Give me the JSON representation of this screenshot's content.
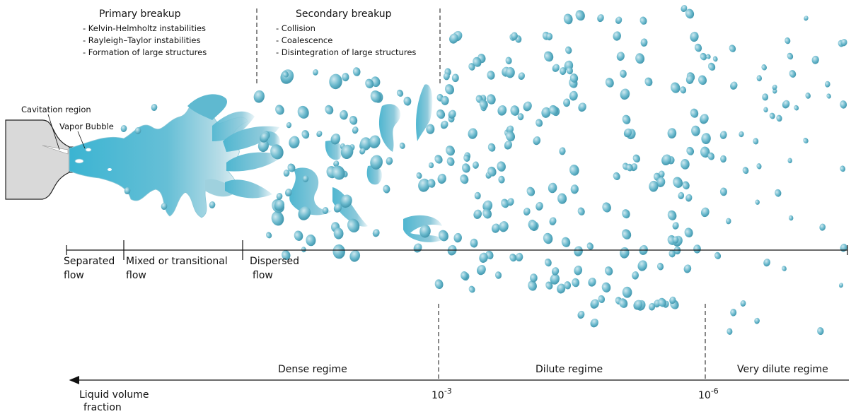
{
  "colors": {
    "liquid": "#3bb4d2",
    "droplet_dark": "#4a9fb6",
    "droplet_light": "#cfe9f0",
    "nozzle_fill": "#d9d9d9",
    "line": "#111111"
  },
  "primary": {
    "title": "Primary breakup",
    "items": [
      "- Kelvin-Helmholtz instabilities",
      "- Rayleigh–Taylor instabilities",
      "- Formation of large structures"
    ]
  },
  "secondary": {
    "title": "Secondary breakup",
    "items": [
      "- Collision",
      "- Coalescence",
      "- Disintegration of large structures"
    ]
  },
  "nozzle": {
    "cavitation_label": "Cavitation region",
    "bubble_label": "Vapor Bubble"
  },
  "flow_regions": [
    {
      "line1": "Separated",
      "line2": "flow"
    },
    {
      "line1": "Mixed or transitional",
      "line2": "flow"
    },
    {
      "line1": "Dispersed",
      "line2": "flow"
    }
  ],
  "regimes": {
    "dense": "Dense regime",
    "dilute": "Dilute regime",
    "very_dilute": "Very dilute regime"
  },
  "fraction_axis": {
    "label_line1": "Liquid volume",
    "label_line2": "fraction",
    "tick1_base": "10",
    "tick1_exp": "-3",
    "tick2_base": "10",
    "tick2_exp": "-6"
  }
}
